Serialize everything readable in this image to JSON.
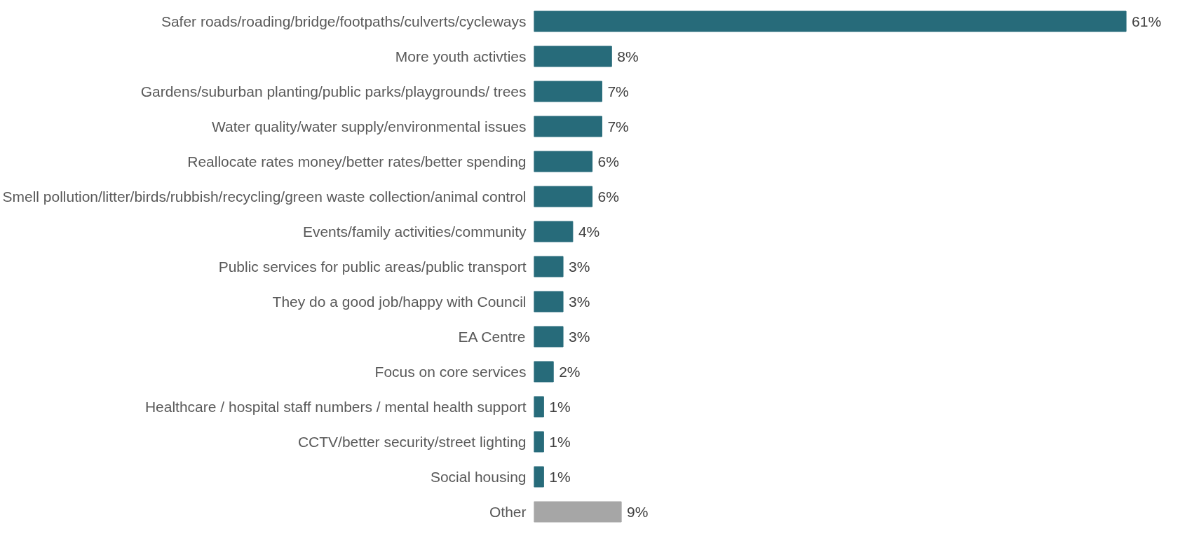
{
  "chart_data": {
    "type": "bar",
    "orientation": "horizontal",
    "categories": [
      "Safer roads/roading/bridge/footpaths/culverts/cycleways",
      "More youth activties",
      "Gardens/suburban planting/public parks/playgrounds/ trees",
      "Water quality/water supply/environmental issues",
      "Reallocate rates money/better rates/better spending",
      "Smell pollution/litter/birds/rubbish/recycling/green waste collection/animal control",
      "Events/family activities/community",
      "Public services for public areas/public transport",
      "They do a good job/happy with Council",
      "EA Centre",
      "Focus on core services",
      "Healthcare / hospital staff numbers / mental health support",
      "CCTV/better security/street lighting",
      "Social housing",
      "Other"
    ],
    "values": [
      61,
      8,
      7,
      7,
      6,
      6,
      4,
      3,
      3,
      3,
      2,
      1,
      1,
      1,
      9
    ],
    "value_labels": [
      "61%",
      "8%",
      "7%",
      "7%",
      "6%",
      "6%",
      "4%",
      "3%",
      "3%",
      "3%",
      "2%",
      "1%",
      "1%",
      "1%",
      "9%"
    ],
    "colors": [
      "#276b7a",
      "#276b7a",
      "#276b7a",
      "#276b7a",
      "#276b7a",
      "#276b7a",
      "#276b7a",
      "#276b7a",
      "#276b7a",
      "#276b7a",
      "#276b7a",
      "#276b7a",
      "#276b7a",
      "#276b7a",
      "#a6a6a6"
    ]
  }
}
